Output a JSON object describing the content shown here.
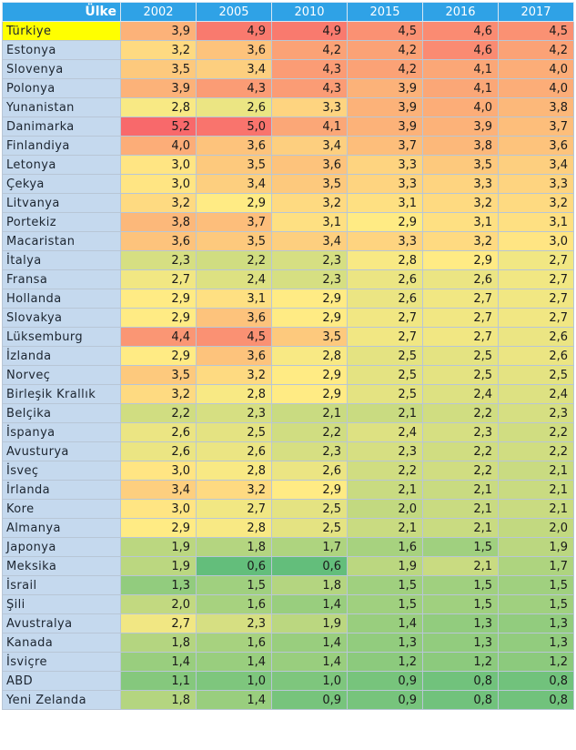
{
  "table": {
    "country_header": "Ülke",
    "highlight_country": "Türkiye",
    "years": [
      "2002",
      "2005",
      "2010",
      "2015",
      "2016",
      "2017"
    ],
    "color_scale": {
      "low": "#63be7b",
      "mid": "#ffeb84",
      "high": "#f8696b",
      "min": 0.6,
      "mid_value": 2.9,
      "max": 5.2
    },
    "rows": [
      {
        "country": "Türkiye",
        "values": [
          "3,9",
          "4,9",
          "4,9",
          "4,5",
          "4,6",
          "4,5"
        ]
      },
      {
        "country": "Estonya",
        "values": [
          "3,2",
          "3,6",
          "4,2",
          "4,2",
          "4,6",
          "4,2"
        ]
      },
      {
        "country": "Slovenya",
        "values": [
          "3,5",
          "3,4",
          "4,3",
          "4,2",
          "4,1",
          "4,0"
        ]
      },
      {
        "country": "Polonya",
        "values": [
          "3,9",
          "4,3",
          "4,3",
          "3,9",
          "4,1",
          "4,0"
        ]
      },
      {
        "country": "Yunanistan",
        "values": [
          "2,8",
          "2,6",
          "3,3",
          "3,9",
          "4,0",
          "3,8"
        ]
      },
      {
        "country": "Danimarka",
        "values": [
          "5,2",
          "5,0",
          "4,1",
          "3,9",
          "3,9",
          "3,7"
        ]
      },
      {
        "country": "Finlandiya",
        "values": [
          "4,0",
          "3,6",
          "3,4",
          "3,7",
          "3,8",
          "3,6"
        ]
      },
      {
        "country": "Letonya",
        "values": [
          "3,0",
          "3,5",
          "3,6",
          "3,3",
          "3,5",
          "3,4"
        ]
      },
      {
        "country": "Çekya",
        "values": [
          "3,0",
          "3,4",
          "3,5",
          "3,3",
          "3,3",
          "3,3"
        ]
      },
      {
        "country": "Litvanya",
        "values": [
          "3,2",
          "2,9",
          "3,2",
          "3,1",
          "3,2",
          "3,2"
        ]
      },
      {
        "country": "Portekiz",
        "values": [
          "3,8",
          "3,7",
          "3,1",
          "2,9",
          "3,1",
          "3,1"
        ]
      },
      {
        "country": "Macaristan",
        "values": [
          "3,6",
          "3,5",
          "3,4",
          "3,3",
          "3,2",
          "3,0"
        ]
      },
      {
        "country": "İtalya",
        "values": [
          "2,3",
          "2,2",
          "2,3",
          "2,8",
          "2,9",
          "2,7"
        ]
      },
      {
        "country": "Fransa",
        "values": [
          "2,7",
          "2,4",
          "2,3",
          "2,6",
          "2,6",
          "2,7"
        ]
      },
      {
        "country": "Hollanda",
        "values": [
          "2,9",
          "3,1",
          "2,9",
          "2,6",
          "2,7",
          "2,7"
        ]
      },
      {
        "country": "Slovakya",
        "values": [
          "2,9",
          "3,6",
          "2,9",
          "2,7",
          "2,7",
          "2,7"
        ]
      },
      {
        "country": "Lüksemburg",
        "values": [
          "4,4",
          "4,5",
          "3,5",
          "2,7",
          "2,7",
          "2,6"
        ]
      },
      {
        "country": "İzlanda",
        "values": [
          "2,9",
          "3,6",
          "2,8",
          "2,5",
          "2,5",
          "2,6"
        ]
      },
      {
        "country": "Norveç",
        "values": [
          "3,5",
          "3,2",
          "2,9",
          "2,5",
          "2,5",
          "2,5"
        ]
      },
      {
        "country": "Birleşik Krallık",
        "values": [
          "3,2",
          "2,8",
          "2,9",
          "2,5",
          "2,4",
          "2,4"
        ]
      },
      {
        "country": "Belçika",
        "values": [
          "2,2",
          "2,3",
          "2,1",
          "2,1",
          "2,2",
          "2,3"
        ]
      },
      {
        "country": "İspanya",
        "values": [
          "2,6",
          "2,5",
          "2,2",
          "2,4",
          "2,3",
          "2,2"
        ]
      },
      {
        "country": "Avusturya",
        "values": [
          "2,6",
          "2,6",
          "2,3",
          "2,3",
          "2,2",
          "2,2"
        ]
      },
      {
        "country": "İsveç",
        "values": [
          "3,0",
          "2,8",
          "2,6",
          "2,2",
          "2,2",
          "2,1"
        ]
      },
      {
        "country": "İrlanda",
        "values": [
          "3,4",
          "3,2",
          "2,9",
          "2,1",
          "2,1",
          "2,1"
        ]
      },
      {
        "country": "Kore",
        "values": [
          "3,0",
          "2,7",
          "2,5",
          "2,0",
          "2,1",
          "2,1"
        ]
      },
      {
        "country": "Almanya",
        "values": [
          "2,9",
          "2,8",
          "2,5",
          "2,1",
          "2,1",
          "2,0"
        ]
      },
      {
        "country": "Japonya",
        "values": [
          "1,9",
          "1,8",
          "1,7",
          "1,6",
          "1,5",
          "1,9"
        ]
      },
      {
        "country": "Meksika",
        "values": [
          "1,9",
          "0,6",
          "0,6",
          "1,9",
          "2,1",
          "1,7"
        ]
      },
      {
        "country": "İsrail",
        "values": [
          "1,3",
          "1,5",
          "1,8",
          "1,5",
          "1,5",
          "1,5"
        ]
      },
      {
        "country": "Şili",
        "values": [
          "2,0",
          "1,6",
          "1,4",
          "1,5",
          "1,5",
          "1,5"
        ]
      },
      {
        "country": "Avustralya",
        "values": [
          "2,7",
          "2,3",
          "1,9",
          "1,4",
          "1,3",
          "1,3"
        ]
      },
      {
        "country": "Kanada",
        "values": [
          "1,8",
          "1,6",
          "1,4",
          "1,3",
          "1,3",
          "1,3"
        ]
      },
      {
        "country": "İsviçre",
        "values": [
          "1,4",
          "1,4",
          "1,4",
          "1,2",
          "1,2",
          "1,2"
        ]
      },
      {
        "country": "ABD",
        "values": [
          "1,1",
          "1,0",
          "1,0",
          "0,9",
          "0,8",
          "0,8"
        ]
      },
      {
        "country": "Yeni Zelanda",
        "values": [
          "1,8",
          "1,4",
          "0,9",
          "0,9",
          "0,8",
          "0,8"
        ]
      }
    ]
  }
}
